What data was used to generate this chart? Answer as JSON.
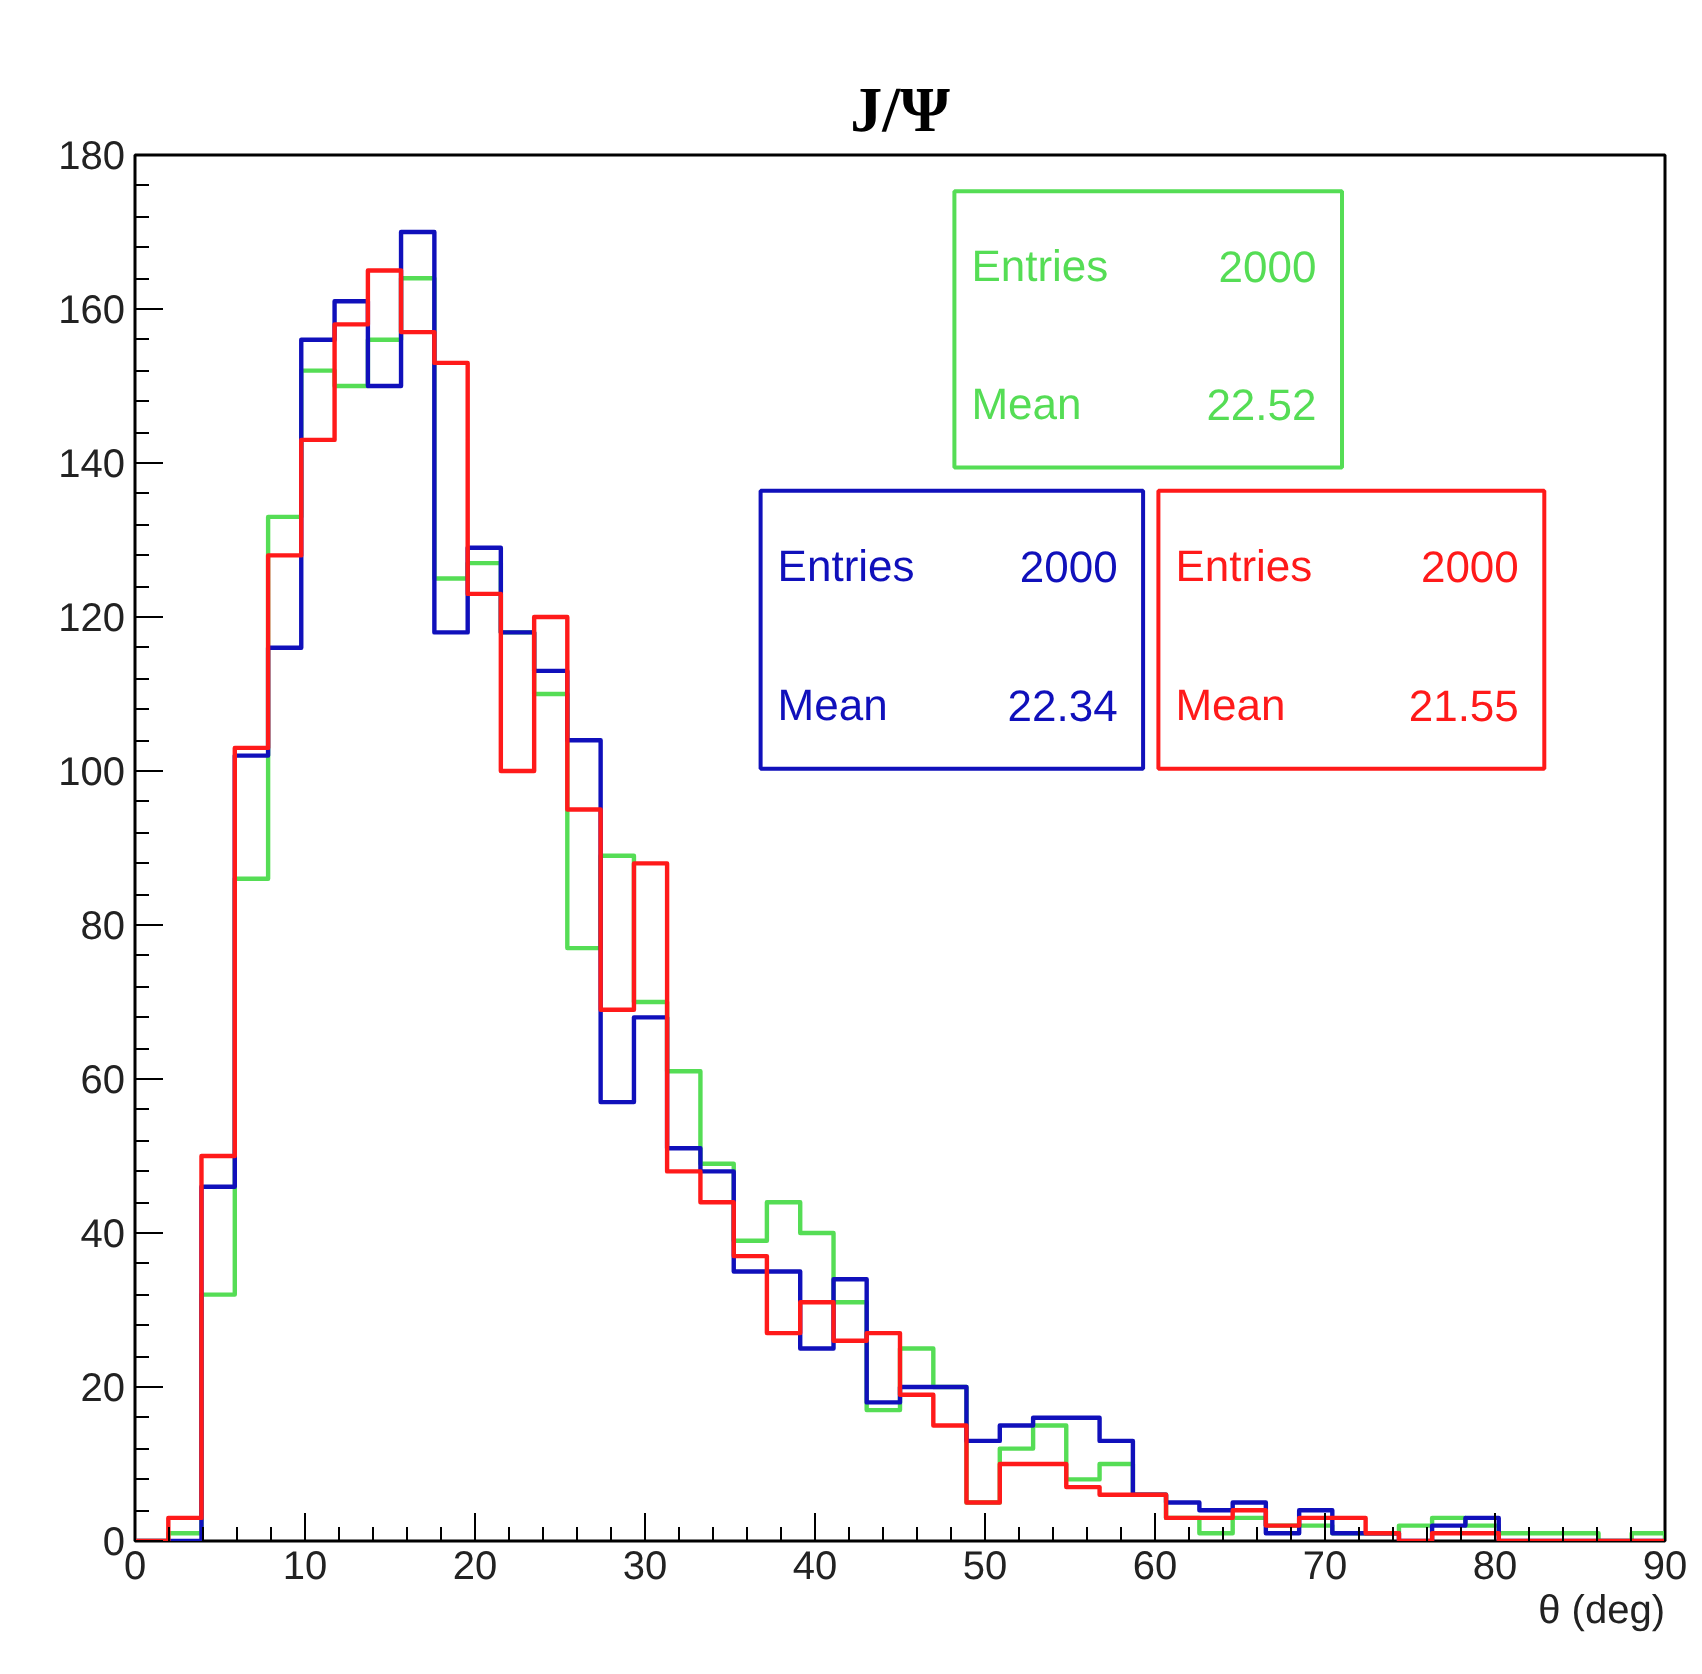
{
  "chart_data": {
    "type": "histogram",
    "title": "J/Ψ",
    "xlabel": "θ (deg)",
    "bins": [
      0,
      1.96,
      3.91,
      5.87,
      7.83,
      9.78,
      11.74,
      13.7,
      15.65,
      17.61,
      19.57,
      21.52,
      23.48,
      25.43,
      27.39,
      29.35,
      31.3,
      33.26,
      35.22,
      37.17,
      39.13,
      41.09,
      43.04,
      45,
      46.96,
      48.91,
      50.87,
      52.83,
      54.78,
      56.74,
      58.7,
      60.65,
      62.61,
      64.57,
      66.52,
      68.48,
      70.43,
      72.39,
      74.35,
      76.3,
      78.26,
      80.22,
      82.17,
      84.13,
      86.09,
      88.04,
      90
    ],
    "series": [
      {
        "color": "#55dd55",
        "values": [
          0,
          1,
          32,
          86,
          133,
          152,
          150,
          156,
          164,
          125,
          127,
          118,
          110,
          77,
          89,
          70,
          61,
          49,
          39,
          44,
          40,
          31,
          17,
          25,
          20,
          5,
          12,
          15,
          8,
          10,
          6,
          3,
          1,
          3,
          2,
          2,
          1,
          1,
          2,
          3,
          2,
          1,
          1,
          1,
          0,
          1
        ]
      },
      {
        "color": "#1010bb",
        "values": [
          0,
          0,
          46,
          102,
          116,
          156,
          161,
          150,
          170,
          118,
          129,
          118,
          113,
          104,
          57,
          68,
          51,
          48,
          35,
          35,
          25,
          34,
          18,
          20,
          20,
          13,
          15,
          16,
          16,
          13,
          6,
          5,
          4,
          5,
          1,
          4,
          1,
          1,
          0,
          2,
          3,
          0,
          0,
          0,
          0,
          0
        ]
      },
      {
        "color": "#ff1a1a",
        "values": [
          0,
          3,
          50,
          103,
          128,
          143,
          158,
          165,
          157,
          153,
          123,
          100,
          120,
          95,
          69,
          88,
          48,
          44,
          37,
          27,
          31,
          26,
          27,
          19,
          15,
          5,
          10,
          10,
          7,
          6,
          6,
          3,
          3,
          4,
          2,
          3,
          3,
          1,
          0,
          1,
          1,
          0,
          0,
          0,
          0,
          0
        ]
      }
    ],
    "annotations": [
      "Entries 2000",
      "Mean 22.52",
      "Entries 2000",
      "Mean 22.34",
      "Entries 2000",
      "Mean 21.55"
    ],
    "xlim": [
      0,
      90
    ],
    "xticks": [
      0,
      10,
      20,
      30,
      40,
      50,
      60,
      70,
      80,
      90
    ],
    "ylim": [
      0,
      180
    ],
    "yticks": [
      0,
      20,
      40,
      60,
      80,
      100,
      120,
      140,
      160,
      180
    ],
    "grid": false
  }
}
